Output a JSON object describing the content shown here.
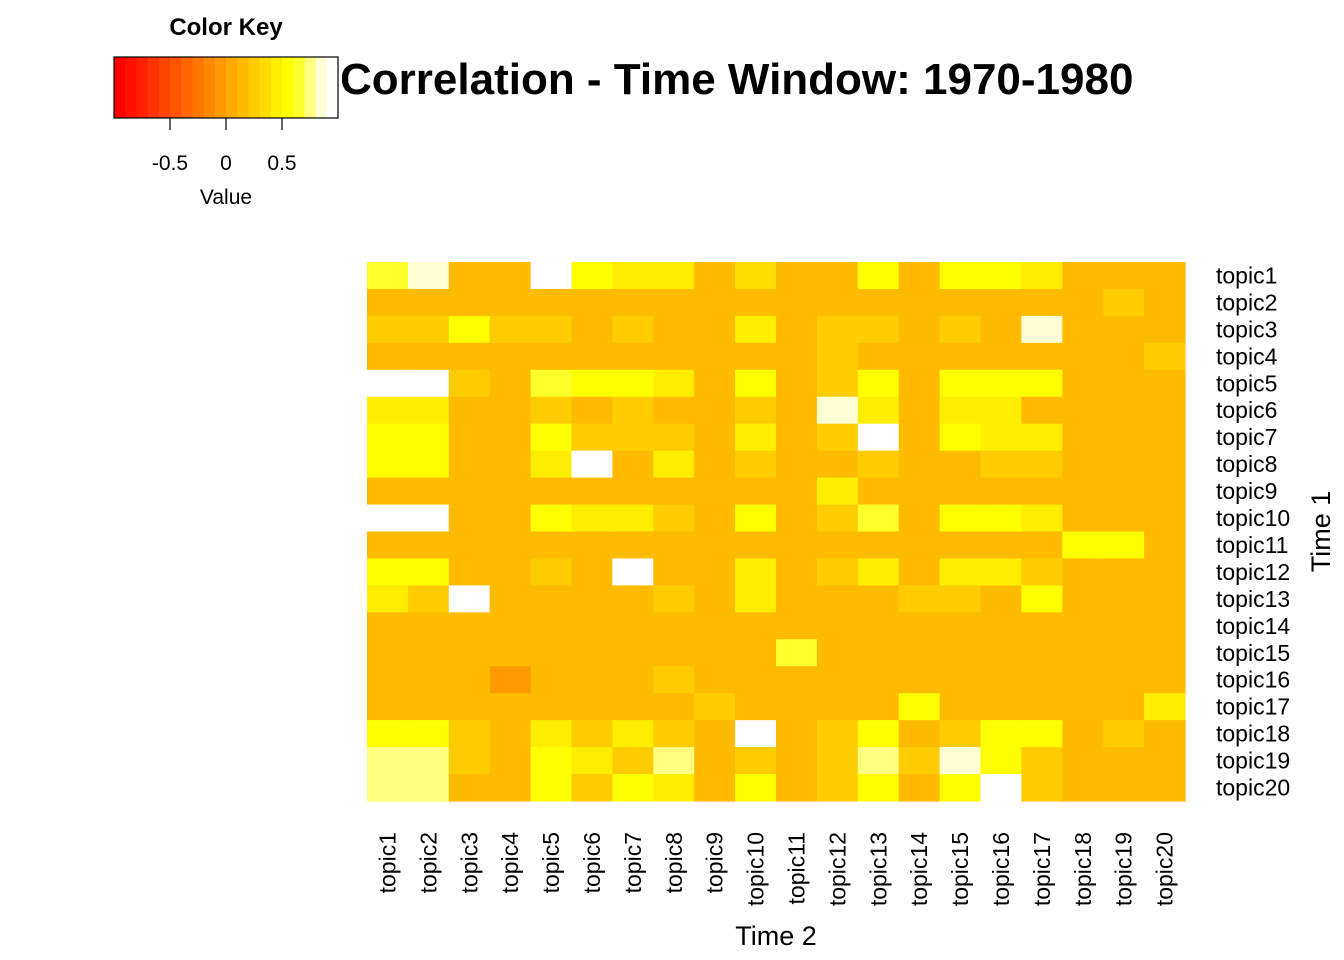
{
  "chart_data": {
    "type": "heatmap",
    "title": "Correlation - Time Window: 1970-1980",
    "xlabel": "Time 2",
    "ylabel": "Time 1",
    "rows": [
      "topic1",
      "topic2",
      "topic3",
      "topic4",
      "topic5",
      "topic6",
      "topic7",
      "topic8",
      "topic9",
      "topic10",
      "topic11",
      "topic12",
      "topic13",
      "topic14",
      "topic15",
      "topic16",
      "topic17",
      "topic18",
      "topic19",
      "topic20"
    ],
    "columns": [
      "topic1",
      "topic2",
      "topic3",
      "topic4",
      "topic5",
      "topic6",
      "topic7",
      "topic8",
      "topic9",
      "topic10",
      "topic11",
      "topic12",
      "topic13",
      "topic14",
      "topic15",
      "topic16",
      "topic17",
      "topic18",
      "topic19",
      "topic20"
    ],
    "values": [
      [
        0.65,
        0.85,
        0.1,
        0.1,
        0.9,
        0.55,
        0.4,
        0.4,
        0.1,
        0.35,
        0.1,
        0.1,
        0.55,
        0.1,
        0.55,
        0.55,
        0.4,
        0.1,
        0.1,
        0.1
      ],
      [
        0.1,
        0.1,
        0.1,
        0.1,
        0.1,
        0.1,
        0.1,
        0.1,
        0.1,
        0.1,
        0.1,
        0.1,
        0.1,
        0.1,
        0.1,
        0.1,
        0.1,
        0.1,
        0.25,
        0.1
      ],
      [
        0.25,
        0.25,
        0.55,
        0.2,
        0.25,
        0.1,
        0.25,
        0.1,
        0.1,
        0.4,
        0.1,
        0.25,
        0.25,
        0.1,
        0.25,
        0.1,
        0.8,
        0.1,
        0.1,
        0.1
      ],
      [
        0.1,
        0.1,
        0.1,
        0.1,
        0.1,
        0.1,
        0.1,
        0.1,
        0.1,
        0.1,
        0.1,
        0.2,
        0.1,
        0.1,
        0.1,
        0.1,
        0.1,
        0.1,
        0.1,
        0.25
      ],
      [
        0.9,
        0.9,
        0.25,
        0.1,
        0.65,
        0.55,
        0.55,
        0.4,
        0.1,
        0.55,
        0.1,
        0.25,
        0.55,
        0.1,
        0.55,
        0.55,
        0.55,
        0.1,
        0.1,
        0.1
      ],
      [
        0.4,
        0.4,
        0.1,
        0.1,
        0.25,
        0.15,
        0.25,
        0.1,
        0.1,
        0.25,
        0.1,
        0.8,
        0.4,
        0.1,
        0.4,
        0.4,
        0.1,
        0.1,
        0.1,
        0.1
      ],
      [
        0.55,
        0.55,
        0.1,
        0.1,
        0.55,
        0.25,
        0.25,
        0.25,
        0.1,
        0.4,
        0.1,
        0.25,
        0.9,
        0.1,
        0.55,
        0.4,
        0.4,
        0.1,
        0.1,
        0.1
      ],
      [
        0.55,
        0.55,
        0.1,
        0.1,
        0.4,
        0.9,
        0.1,
        0.4,
        0.1,
        0.25,
        0.1,
        0.15,
        0.25,
        0.1,
        0.1,
        0.25,
        0.25,
        0.1,
        0.1,
        0.1
      ],
      [
        0.1,
        0.1,
        0.1,
        0.1,
        0.1,
        0.1,
        0.1,
        0.1,
        0.1,
        0.1,
        0.1,
        0.4,
        0.1,
        0.1,
        0.1,
        0.1,
        0.1,
        0.1,
        0.1,
        0.1
      ],
      [
        0.9,
        0.9,
        0.1,
        0.1,
        0.55,
        0.4,
        0.4,
        0.25,
        0.1,
        0.55,
        0.1,
        0.25,
        0.65,
        0.1,
        0.55,
        0.55,
        0.4,
        0.1,
        0.1,
        0.1
      ],
      [
        0.1,
        0.1,
        0.1,
        0.1,
        0.1,
        0.1,
        0.1,
        0.1,
        0.1,
        0.1,
        0.1,
        0.1,
        0.1,
        0.1,
        0.1,
        0.1,
        0.1,
        0.55,
        0.55,
        0.1
      ],
      [
        0.55,
        0.55,
        0.1,
        0.1,
        0.25,
        0.1,
        0.9,
        0.1,
        0.1,
        0.4,
        0.1,
        0.25,
        0.4,
        0.1,
        0.4,
        0.4,
        0.25,
        0.1,
        0.1,
        0.1
      ],
      [
        0.4,
        0.25,
        0.9,
        0.1,
        0.1,
        0.1,
        0.1,
        0.25,
        0.1,
        0.4,
        0.1,
        0.1,
        0.1,
        0.2,
        0.2,
        0.1,
        0.55,
        0.1,
        0.1,
        0.1
      ],
      [
        0.1,
        0.1,
        0.1,
        0.1,
        0.1,
        0.1,
        0.1,
        0.1,
        0.1,
        0.1,
        0.1,
        0.1,
        0.1,
        0.1,
        0.1,
        0.1,
        0.1,
        0.1,
        0.1,
        0.1
      ],
      [
        0.1,
        0.1,
        0.1,
        0.1,
        0.1,
        0.1,
        0.1,
        0.1,
        0.1,
        0.1,
        0.65,
        0.1,
        0.1,
        0.1,
        0.1,
        0.1,
        0.1,
        0.1,
        0.1,
        0.1
      ],
      [
        0.1,
        0.1,
        0.1,
        -0.05,
        0.1,
        0.1,
        0.1,
        0.25,
        0.1,
        0.1,
        0.1,
        0.1,
        0.1,
        0.1,
        0.1,
        0.1,
        0.1,
        0.1,
        0.1,
        0.1
      ],
      [
        0.1,
        0.1,
        0.1,
        0.1,
        0.1,
        0.1,
        0.1,
        0.1,
        0.2,
        0.1,
        0.1,
        0.1,
        0.1,
        0.55,
        0.1,
        0.1,
        0.1,
        0.1,
        0.1,
        0.4
      ],
      [
        0.55,
        0.55,
        0.25,
        0.1,
        0.4,
        0.25,
        0.4,
        0.25,
        0.1,
        0.9,
        0.1,
        0.25,
        0.55,
        0.1,
        0.25,
        0.55,
        0.55,
        0.1,
        0.25,
        0.1
      ],
      [
        0.7,
        0.7,
        0.25,
        0.1,
        0.55,
        0.4,
        0.25,
        0.7,
        0.1,
        0.25,
        0.1,
        0.25,
        0.7,
        0.2,
        0.8,
        0.55,
        0.25,
        0.1,
        0.1,
        0.1
      ],
      [
        0.7,
        0.7,
        0.1,
        0.1,
        0.55,
        0.25,
        0.55,
        0.4,
        0.1,
        0.55,
        0.1,
        0.25,
        0.55,
        0.1,
        0.55,
        0.9,
        0.25,
        0.1,
        0.1,
        0.1
      ]
    ],
    "color_key": {
      "title": "Color Key",
      "label": "Value",
      "range": [
        -1,
        1
      ],
      "ticks": [
        "-0.5",
        "0",
        "0.5"
      ],
      "tick_values": [
        -0.5,
        0,
        0.5
      ],
      "colors": [
        "#FF0000",
        "#FF1100",
        "#FF2200",
        "#FF3300",
        "#FF4400",
        "#FF5500",
        "#FF6600",
        "#FF7700",
        "#FF8800",
        "#FF9900",
        "#FFAA00",
        "#FFBB00",
        "#FFCC00",
        "#FFDD00",
        "#FFEE00",
        "#FFFF00",
        "#FFFF2A",
        "#FFFF80",
        "#FFFFD5",
        "#FFFFFF"
      ]
    }
  }
}
